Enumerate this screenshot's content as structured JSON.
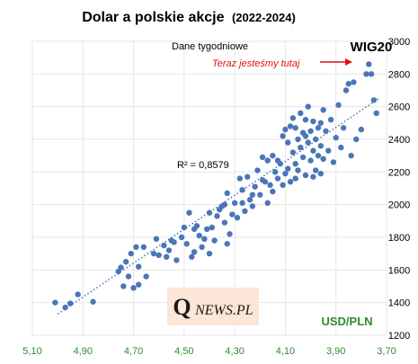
{
  "chart_data": {
    "type": "scatter",
    "title": "Dolar a polskie akcje",
    "title_suffix": "(2022-2024)",
    "subtitle": "Dane tygodniowe",
    "xlabel": "USD/PLN",
    "ylabel": "WIG20",
    "x_axis_reversed": true,
    "xlim": [
      5.1,
      3.7
    ],
    "ylim": [
      1200,
      3000
    ],
    "x_ticks": [
      "5,10",
      "4,90",
      "4,70",
      "4,50",
      "4,30",
      "4,10",
      "3,90",
      "3,70"
    ],
    "y_ticks": [
      "1200",
      "1400",
      "1600",
      "1800",
      "2000",
      "2200",
      "2400",
      "2600",
      "2800",
      "3000"
    ],
    "grid": true,
    "trendline": {
      "style": "dotted",
      "x": [
        5.0,
        3.73
      ],
      "y": [
        1330,
        2650
      ]
    },
    "r_squared_label": "R² = 0,8579",
    "annotation": "Teraz jesteśmy tutaj",
    "annotation_color": "#e01010",
    "point_color": "#4a76b8",
    "trend_color": "#3a68b0",
    "axis_label_color": "#2e8b2e",
    "watermark_brand_initial": "Q",
    "watermark_brand_rest": "NEWS.PL",
    "points": [
      [
        5.01,
        1400
      ],
      [
        4.97,
        1370
      ],
      [
        4.95,
        1395
      ],
      [
        4.92,
        1450
      ],
      [
        4.86,
        1405
      ],
      [
        4.76,
        1590
      ],
      [
        4.75,
        1615
      ],
      [
        4.73,
        1650
      ],
      [
        4.72,
        1560
      ],
      [
        4.71,
        1700
      ],
      [
        4.7,
        1490
      ],
      [
        4.69,
        1740
      ],
      [
        4.68,
        1510
      ],
      [
        4.66,
        1740
      ],
      [
        4.65,
        1560
      ],
      [
        4.61,
        1790
      ],
      [
        4.6,
        1690
      ],
      [
        4.58,
        1750
      ],
      [
        4.57,
        1680
      ],
      [
        4.56,
        1720
      ],
      [
        4.55,
        1780
      ],
      [
        4.53,
        1660
      ],
      [
        4.51,
        1800
      ],
      [
        4.5,
        1860
      ],
      [
        4.49,
        1760
      ],
      [
        4.48,
        1950
      ],
      [
        4.47,
        1680
      ],
      [
        4.46,
        1710
      ],
      [
        4.45,
        1870
      ],
      [
        4.44,
        1810
      ],
      [
        4.43,
        1740
      ],
      [
        4.42,
        1790
      ],
      [
        4.41,
        1850
      ],
      [
        4.4,
        1700
      ],
      [
        4.39,
        1860
      ],
      [
        4.38,
        1780
      ],
      [
        4.37,
        1930
      ],
      [
        4.36,
        1970
      ],
      [
        4.35,
        1990
      ],
      [
        4.34,
        1890
      ],
      [
        4.33,
        1760
      ],
      [
        4.33,
        2070
      ],
      [
        4.32,
        1820
      ],
      [
        4.31,
        1940
      ],
      [
        4.3,
        2010
      ],
      [
        4.29,
        1920
      ],
      [
        4.28,
        2160
      ],
      [
        4.27,
        2090
      ],
      [
        4.26,
        1960
      ],
      [
        4.25,
        2170
      ],
      [
        4.24,
        2030
      ],
      [
        4.23,
        1990
      ],
      [
        4.22,
        2110
      ],
      [
        4.21,
        2210
      ],
      [
        4.2,
        2060
      ],
      [
        4.19,
        2150
      ],
      [
        4.18,
        2140
      ],
      [
        4.17,
        2010
      ],
      [
        4.17,
        2270
      ],
      [
        4.16,
        2120
      ],
      [
        4.15,
        2080
      ],
      [
        4.14,
        2200
      ],
      [
        4.13,
        2160
      ],
      [
        4.12,
        2250
      ],
      [
        4.11,
        2420
      ],
      [
        4.1,
        2190
      ],
      [
        4.1,
        2460
      ],
      [
        4.09,
        2380
      ],
      [
        4.08,
        2140
      ],
      [
        4.08,
        2480
      ],
      [
        4.07,
        2320
      ],
      [
        4.07,
        2530
      ],
      [
        4.06,
        2250
      ],
      [
        4.06,
        2470
      ],
      [
        4.05,
        2400
      ],
      [
        4.05,
        2210
      ],
      [
        4.04,
        2350
      ],
      [
        4.04,
        2560
      ],
      [
        4.03,
        2290
      ],
      [
        4.03,
        2440
      ],
      [
        4.02,
        2180
      ],
      [
        4.02,
        2520
      ],
      [
        4.01,
        2380
      ],
      [
        4.01,
        2600
      ],
      [
        4.0,
        2270
      ],
      [
        4.0,
        2450
      ],
      [
        3.99,
        2330
      ],
      [
        3.99,
        2510
      ],
      [
        3.98,
        2210
      ],
      [
        3.98,
        2400
      ],
      [
        3.97,
        2300
      ],
      [
        3.97,
        2470
      ],
      [
        3.96,
        2190
      ],
      [
        3.96,
        2360
      ],
      [
        3.95,
        2280
      ],
      [
        3.95,
        2580
      ],
      [
        3.94,
        2450
      ],
      [
        3.93,
        2330
      ],
      [
        3.92,
        2520
      ],
      [
        3.91,
        2260
      ],
      [
        3.9,
        2410
      ],
      [
        3.89,
        2610
      ],
      [
        3.88,
        2350
      ],
      [
        3.87,
        2470
      ],
      [
        3.86,
        2700
      ],
      [
        3.85,
        2740
      ],
      [
        3.84,
        2300
      ],
      [
        3.83,
        2750
      ],
      [
        3.82,
        2400
      ],
      [
        3.8,
        2460
      ],
      [
        3.78,
        2800
      ],
      [
        3.77,
        2860
      ],
      [
        3.76,
        2800
      ],
      [
        3.75,
        2640
      ],
      [
        3.74,
        2560
      ],
      [
        4.15,
        2300
      ],
      [
        4.13,
        2270
      ],
      [
        4.09,
        2220
      ],
      [
        4.06,
        2160
      ],
      [
        4.02,
        2420
      ],
      [
        3.99,
        2170
      ],
      [
        3.96,
        2500
      ],
      [
        4.11,
        2120
      ],
      [
        4.19,
        2290
      ],
      [
        4.23,
        2060
      ],
      [
        4.27,
        2010
      ],
      [
        4.34,
        2000
      ],
      [
        4.4,
        1950
      ],
      [
        4.46,
        1850
      ],
      [
        4.54,
        1770
      ],
      [
        4.62,
        1700
      ],
      [
        4.68,
        1620
      ],
      [
        4.74,
        1500
      ]
    ]
  }
}
